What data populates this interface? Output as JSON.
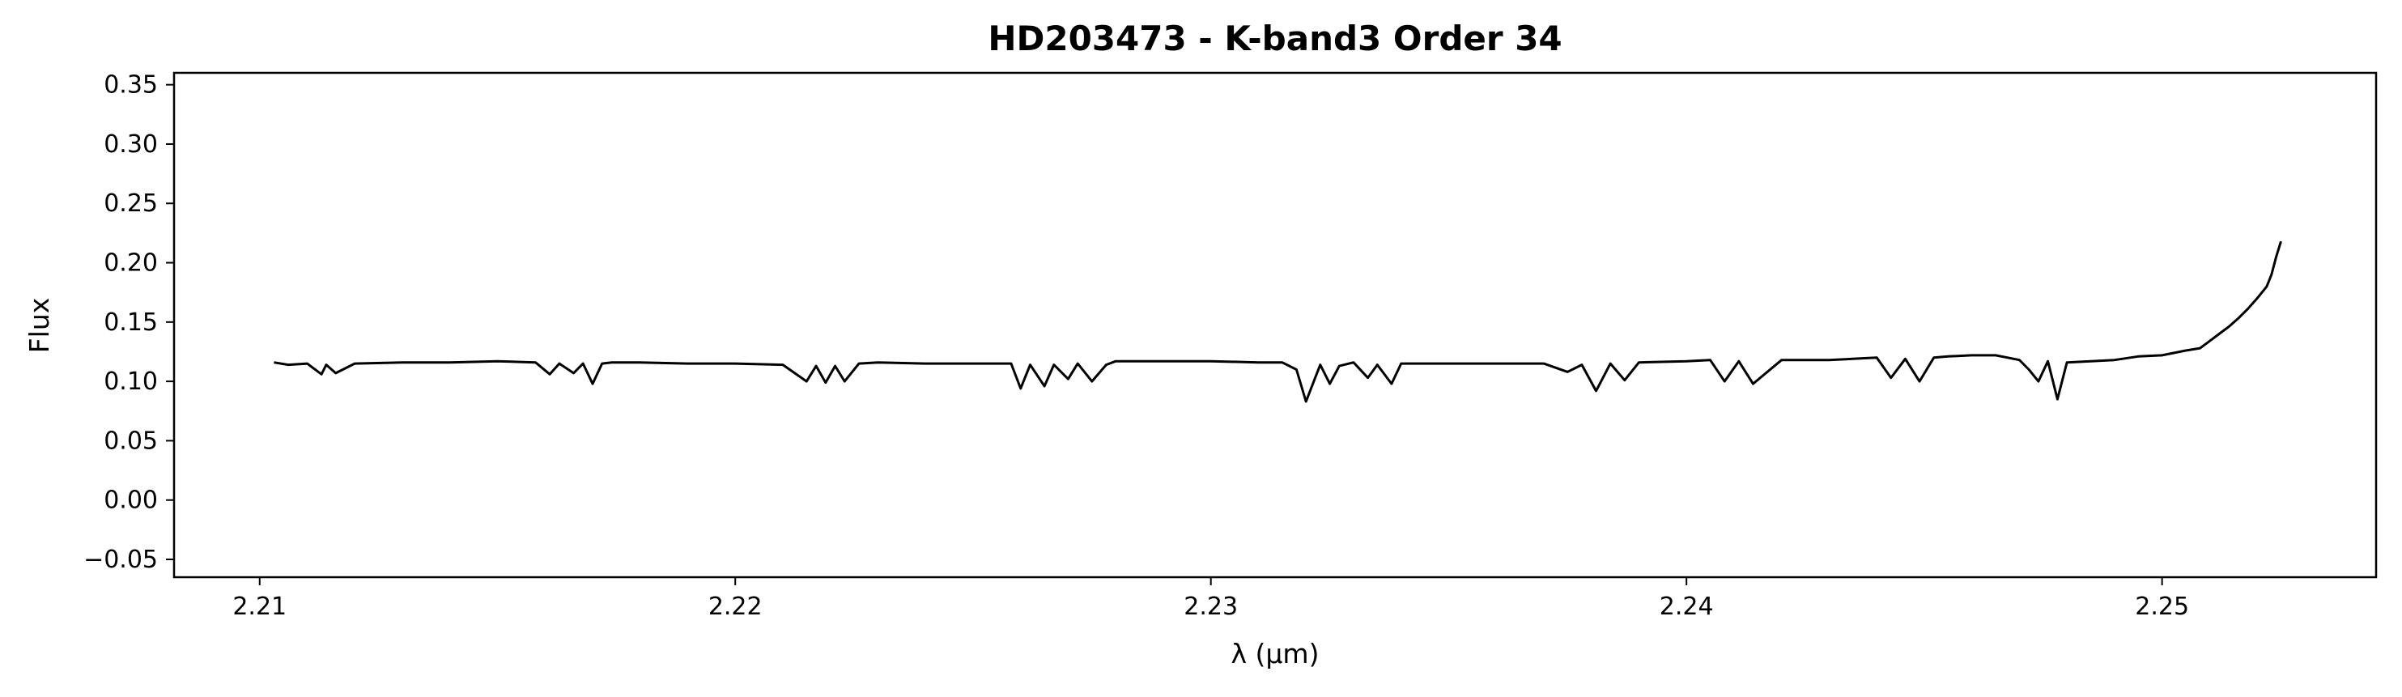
{
  "chart_data": {
    "type": "line",
    "title": "HD203473 - K-band3 Order 34",
    "xlabel": "λ (μm)",
    "ylabel": "Flux",
    "xlim": [
      2.2082,
      2.2545
    ],
    "ylim": [
      -0.065,
      0.36
    ],
    "x_ticks": [
      2.21,
      2.22,
      2.23,
      2.24,
      2.25
    ],
    "x_tick_labels": [
      "2.21",
      "2.22",
      "2.23",
      "2.24",
      "2.25"
    ],
    "y_ticks": [
      -0.05,
      0.0,
      0.05,
      0.1,
      0.15,
      0.2,
      0.25,
      0.3,
      0.35
    ],
    "y_tick_labels": [
      "−0.05",
      "0.00",
      "0.05",
      "0.10",
      "0.15",
      "0.20",
      "0.25",
      "0.30",
      "0.35"
    ],
    "grid": false,
    "line_color": "#000000",
    "series": [
      {
        "x": [
          2.2103,
          2.2106,
          2.211,
          2.2113,
          2.2114,
          2.2116,
          2.212,
          2.213,
          2.214,
          2.215,
          2.2158,
          2.2161,
          2.2163,
          2.2166,
          2.2168,
          2.217,
          2.2172,
          2.2174,
          2.218,
          2.219,
          2.22,
          2.221,
          2.2215,
          2.2217,
          2.2219,
          2.2221,
          2.2223,
          2.2226,
          2.223,
          2.224,
          2.225,
          2.2258,
          2.226,
          2.2262,
          2.2265,
          2.2267,
          2.227,
          2.2272,
          2.2275,
          2.2278,
          2.228,
          2.229,
          2.23,
          2.231,
          2.2315,
          2.2318,
          2.232,
          2.2323,
          2.2325,
          2.2327,
          2.233,
          2.2333,
          2.2335,
          2.2338,
          2.234,
          2.235,
          2.236,
          2.237,
          2.2375,
          2.2378,
          2.2381,
          2.2384,
          2.2387,
          2.239,
          2.24,
          2.2405,
          2.2408,
          2.2411,
          2.2414,
          2.242,
          2.243,
          2.244,
          2.2443,
          2.2446,
          2.2449,
          2.2452,
          2.2455,
          2.246,
          2.2465,
          2.247,
          2.2472,
          2.2474,
          2.2476,
          2.2478,
          2.248,
          2.249,
          2.2495,
          2.25,
          2.2505,
          2.2508,
          2.251,
          2.2512,
          2.2514,
          2.2516,
          2.2518,
          2.252,
          2.2522,
          2.2523,
          2.2524,
          2.2525
        ],
        "y": [
          0.116,
          0.114,
          0.115,
          0.106,
          0.114,
          0.107,
          0.115,
          0.116,
          0.116,
          0.117,
          0.116,
          0.106,
          0.115,
          0.107,
          0.115,
          0.098,
          0.115,
          0.116,
          0.116,
          0.115,
          0.115,
          0.114,
          0.1,
          0.113,
          0.099,
          0.113,
          0.1,
          0.115,
          0.116,
          0.115,
          0.115,
          0.115,
          0.094,
          0.114,
          0.096,
          0.114,
          0.102,
          0.115,
          0.1,
          0.114,
          0.117,
          0.117,
          0.117,
          0.116,
          0.116,
          0.11,
          0.083,
          0.114,
          0.098,
          0.113,
          0.116,
          0.103,
          0.114,
          0.098,
          0.115,
          0.115,
          0.115,
          0.115,
          0.108,
          0.114,
          0.092,
          0.115,
          0.101,
          0.116,
          0.117,
          0.118,
          0.1,
          0.117,
          0.098,
          0.118,
          0.118,
          0.12,
          0.103,
          0.119,
          0.1,
          0.12,
          0.121,
          0.122,
          0.122,
          0.118,
          0.11,
          0.1,
          0.117,
          0.085,
          0.116,
          0.118,
          0.121,
          0.122,
          0.126,
          0.128,
          0.134,
          0.14,
          0.146,
          0.153,
          0.161,
          0.17,
          0.18,
          0.19,
          0.205,
          0.218
        ]
      }
    ]
  }
}
